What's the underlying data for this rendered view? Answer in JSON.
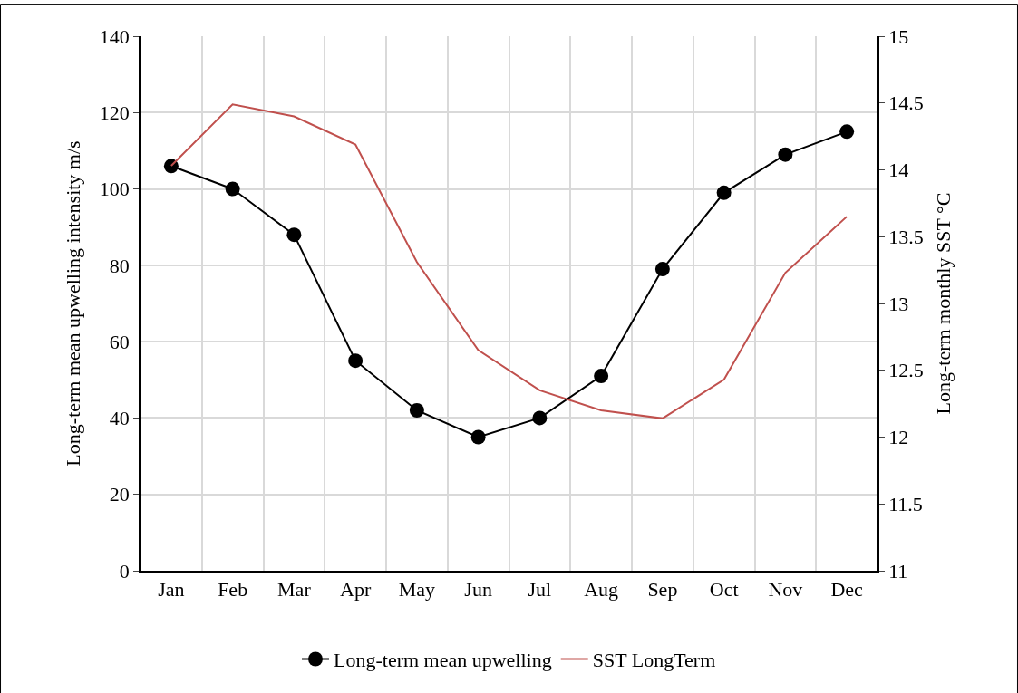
{
  "chart_data": {
    "type": "line",
    "categories": [
      "Jan",
      "Feb",
      "Mar",
      "Apr",
      "May",
      "Jun",
      "Jul",
      "Aug",
      "Sep",
      "Oct",
      "Nov",
      "Dec"
    ],
    "ylabel": "Long-term mean upwelling intensity m/s",
    "y2label": "Long-term monthly SST °C",
    "series": [
      {
        "name": "Long-term mean upwelling",
        "color": "#000000",
        "marker": "circle",
        "values": [
          106,
          100,
          88,
          55,
          42,
          35,
          40,
          51,
          79,
          99,
          109,
          115
        ]
      },
      {
        "name": "SST LongTerm",
        "color": "#c0504d",
        "marker": "none",
        "axis": "y2",
        "values": [
          14.03,
          14.49,
          14.4,
          14.19,
          13.31,
          12.65,
          12.35,
          12.2,
          12.14,
          12.43,
          13.23,
          13.65
        ]
      }
    ],
    "ylim": [
      0,
      140
    ],
    "yticks": [
      0,
      20,
      40,
      60,
      80,
      100,
      120,
      140
    ],
    "y2lim": [
      11,
      15
    ],
    "y2ticks": [
      11,
      11.5,
      12,
      12.5,
      13,
      13.5,
      14,
      14.5,
      15
    ],
    "grid": true,
    "legend": "bottom",
    "line_style": "solid"
  }
}
